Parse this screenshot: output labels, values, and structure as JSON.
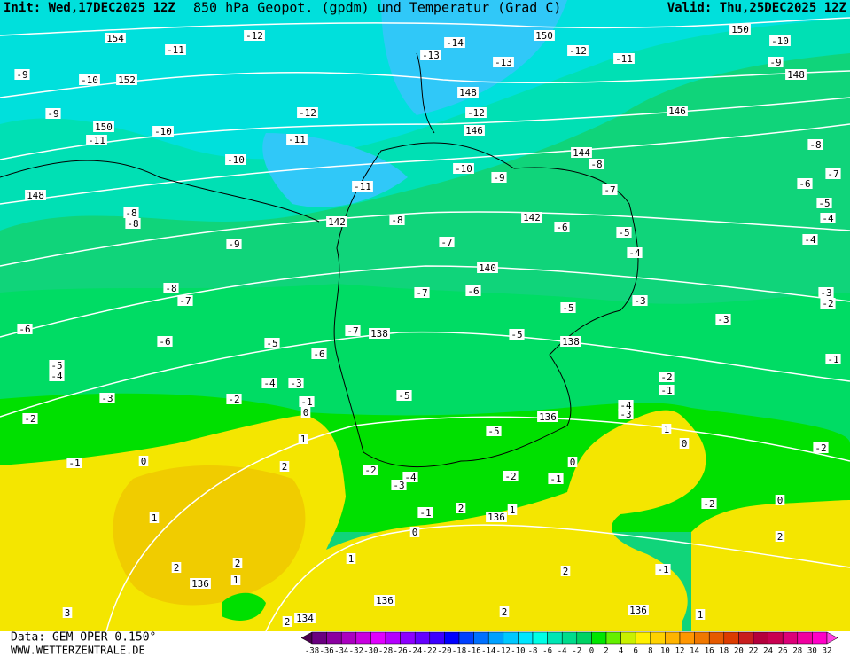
{
  "header": {
    "init": "Init: Wed,17DEC2025 12Z",
    "title": "850 hPa Geopot. (gpdm) und Temperatur (Grad C)",
    "valid": "Valid: Thu,25DEC2025 12Z"
  },
  "footer": {
    "data": "Data: GEM OPER 0.150°",
    "site": "WWW.WETTERZENTRALE.DE"
  },
  "legend": {
    "labels": [
      -38,
      -36,
      -34,
      -32,
      -30,
      -28,
      -26,
      -24,
      -22,
      -20,
      -18,
      -16,
      -14,
      -12,
      -10,
      -8,
      -6,
      -4,
      -2,
      0,
      2,
      4,
      6,
      8,
      10,
      12,
      14,
      16,
      18,
      20,
      22,
      24,
      26,
      28,
      30,
      32
    ],
    "colors": [
      "#4b0050",
      "#6a0080",
      "#8a00a0",
      "#aa00c0",
      "#c800e0",
      "#e000ff",
      "#b400ff",
      "#8c00ff",
      "#6400ff",
      "#3c00ff",
      "#0000ff",
      "#0040ff",
      "#0070ff",
      "#00a0ff",
      "#00c8ff",
      "#00e6ff",
      "#00ffe6",
      "#00e6b4",
      "#00dc8c",
      "#00d264",
      "#00e600",
      "#64f000",
      "#c8f000",
      "#fff000",
      "#ffd200",
      "#ffb400",
      "#ff9600",
      "#f07800",
      "#e65a00",
      "#dc3c00",
      "#c81e1e",
      "#b4003c",
      "#c80050",
      "#dc0078",
      "#f000a0",
      "#ff00c8",
      "#ff40e0"
    ]
  },
  "geopotential_labels": [
    "154",
    "152",
    "150",
    "148",
    "142",
    "140",
    "138",
    "138",
    "136",
    "136",
    "136",
    "136",
    "136",
    "134",
    "150",
    "150",
    "148",
    "148",
    "146",
    "146",
    "144",
    "142"
  ],
  "temperature_labels": [
    "-12",
    "-11",
    "-14",
    "-13",
    "-13",
    "-12",
    "-11",
    "-10",
    "-9",
    "-9",
    "-10",
    "-9",
    "-12",
    "-12",
    "-11",
    "-10",
    "-11",
    "-10",
    "-10",
    "-8",
    "-8",
    "-7",
    "-11",
    "-9",
    "-7",
    "-6",
    "-5",
    "-4",
    "-8",
    "-8",
    "-8",
    "-6",
    "-5",
    "-4",
    "-9",
    "-7",
    "-4",
    "-8",
    "-7",
    "-7",
    "-6",
    "-5",
    "-3",
    "-3",
    "-3",
    "-2",
    "-6",
    "-7",
    "-5",
    "-6",
    "-5",
    "-6",
    "-1",
    "-5",
    "-4",
    "-4",
    "-3",
    "-3",
    "-2",
    "-5",
    "-1",
    "0",
    "-2",
    "-1",
    "-4",
    "-3",
    "-2",
    "-5",
    "1",
    "0",
    "-2",
    "-1",
    "0",
    "2",
    "-2",
    "-4",
    "-3",
    "-2",
    "0",
    "-1",
    "1",
    "1",
    "-1",
    "2",
    "1",
    "0",
    "-2",
    "0",
    "2",
    "2",
    "2",
    "1",
    "2",
    "-1",
    "3",
    "2",
    "1",
    "2",
    "1"
  ]
}
